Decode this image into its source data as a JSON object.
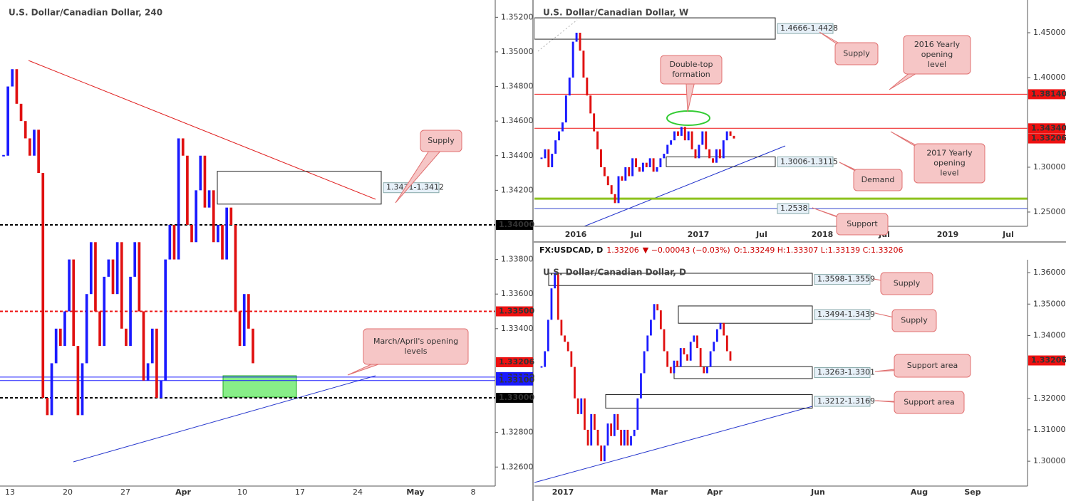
{
  "chart_data": [
    {
      "type": "candlestick",
      "title": "U.S. Dollar/Canadian Dollar, 240",
      "up_color": "#1a1aff",
      "down_color": "#e01010",
      "closes": [
        1.344,
        1.348,
        1.349,
        1.347,
        1.346,
        1.345,
        1.344,
        1.3455,
        1.343,
        1.33,
        1.329,
        1.332,
        1.334,
        1.333,
        1.335,
        1.338,
        1.333,
        1.329,
        1.332,
        1.336,
        1.339,
        1.335,
        1.333,
        1.337,
        1.338,
        1.336,
        1.339,
        1.334,
        1.333,
        1.337,
        1.339,
        1.335,
        1.331,
        1.332,
        1.334,
        1.33,
        1.331,
        1.338,
        1.34,
        1.338,
        1.345,
        1.344,
        1.34,
        1.339,
        1.342,
        1.344,
        1.341,
        1.342,
        1.339,
        1.34,
        1.338,
        1.341,
        1.34,
        1.335,
        1.333,
        1.336,
        1.334,
        1.332
      ],
      "ylim": [
        1.3249,
        1.353
      ],
      "yticks": [
        {
          "value": 1.352,
          "label": "1.35200"
        },
        {
          "value": 1.35,
          "label": "1.35000"
        },
        {
          "value": 1.348,
          "label": "1.34800"
        },
        {
          "value": 1.346,
          "label": "1.34600"
        },
        {
          "value": 1.344,
          "label": "1.34400"
        },
        {
          "value": 1.342,
          "label": "1.34200"
        },
        {
          "value": 1.338,
          "label": "1.33800"
        },
        {
          "value": 1.336,
          "label": "1.33600"
        },
        {
          "value": 1.334,
          "label": "1.33400"
        },
        {
          "value": 1.328,
          "label": "1.32800"
        },
        {
          "value": 1.326,
          "label": "1.32600"
        }
      ],
      "xticks": [
        "13",
        "20",
        "27",
        "Apr",
        "10",
        "17",
        "24",
        "May",
        "8"
      ],
      "levels": [
        {
          "value": 1.34,
          "label": "1.34000",
          "color": "#000000",
          "style": "dash"
        },
        {
          "value": 1.335,
          "label": "1.33500",
          "color": "#ee1111",
          "style": "dash"
        },
        {
          "value": 1.33206,
          "label": "1.33206",
          "color": "#ee1111",
          "style": "none"
        },
        {
          "value": 1.3312,
          "label": "1.33120",
          "color": "#1a1aff",
          "style": "solid"
        },
        {
          "value": 1.331,
          "label": "1.33100",
          "color": "#1a1aff",
          "style": "solid"
        },
        {
          "value": 1.33,
          "label": "1.33000",
          "color": "#000000",
          "style": "dash"
        }
      ],
      "zones": [
        {
          "high": 1.3431,
          "low": 1.3412,
          "label": "1.3431-1.3412"
        }
      ],
      "annotations": [
        {
          "lines": [
            "Supply"
          ]
        },
        {
          "lines": [
            "March/April's opening",
            "levels"
          ]
        }
      ]
    },
    {
      "type": "candlestick",
      "title": "U.S. Dollar/Canadian Dollar, W",
      "up_color": "#1a1aff",
      "down_color": "#e01010",
      "closes": [
        1.31,
        1.32,
        1.3,
        1.315,
        1.33,
        1.34,
        1.35,
        1.38,
        1.4,
        1.44,
        1.45,
        1.43,
        1.4,
        1.38,
        1.36,
        1.34,
        1.32,
        1.3,
        1.29,
        1.28,
        1.27,
        1.26,
        1.29,
        1.285,
        1.3,
        1.29,
        1.31,
        1.3,
        1.295,
        1.305,
        1.3,
        1.31,
        1.295,
        1.3,
        1.31,
        1.315,
        1.325,
        1.33,
        1.34,
        1.335,
        1.345,
        1.33,
        1.34,
        1.32,
        1.31,
        1.325,
        1.34,
        1.32,
        1.31,
        1.305,
        1.32,
        1.31,
        1.33,
        1.34,
        1.335,
        1.332
      ],
      "ylim": [
        1.2341,
        1.4865
      ],
      "yticks": [
        {
          "value": 1.45,
          "label": "1.45000"
        },
        {
          "value": 1.4,
          "label": "1.40000"
        },
        {
          "value": 1.3,
          "label": "1.30000"
        },
        {
          "value": 1.25,
          "label": "1.25000"
        }
      ],
      "xticks": [
        "2016",
        "Jul",
        "2017",
        "Jul",
        "2018",
        "Jul",
        "2019",
        "Jul"
      ],
      "levels": [
        {
          "value": 1.3814,
          "label": "1.38140",
          "color": "#ee1111",
          "style": "solid"
        },
        {
          "value": 1.3434,
          "label": "1.34340",
          "color": "#ee1111",
          "style": "solid"
        },
        {
          "value": 1.33206,
          "label": "1.33206",
          "color": "#ee1111",
          "style": "none"
        },
        {
          "value": 1.265,
          "color": "#8dc21f",
          "style": "thick"
        },
        {
          "value": 1.2538,
          "color": "#3344cc",
          "style": "solid",
          "tag": "1.2538"
        }
      ],
      "zones": [
        {
          "high": 1.4666,
          "low": 1.4428,
          "label": "1.4666-1.4428"
        },
        {
          "high": 1.3115,
          "low": 1.3006,
          "label": "1.3006-1.3115"
        }
      ],
      "annotations": [
        {
          "lines": [
            "Double-top",
            "formation"
          ]
        },
        {
          "lines": [
            "Supply"
          ]
        },
        {
          "lines": [
            "2016 Yearly",
            "opening",
            "level"
          ]
        },
        {
          "lines": [
            "2017 Yearly",
            "opening",
            "level"
          ]
        },
        {
          "lines": [
            "Demand"
          ]
        },
        {
          "lines": [
            "Support"
          ]
        }
      ]
    },
    {
      "type": "candlestick",
      "title": "U.S. Dollar/Canadian Dollar, D",
      "header": {
        "symbol": "FX:USDCAD, D",
        "last": "1.33206",
        "change": "▼ −0.00043 (−0.03%)",
        "ohlc": "O:1.33249 H:1.33307 L:1.33139 C:1.33206"
      },
      "up_color": "#1a1aff",
      "down_color": "#e01010",
      "closes": [
        1.33,
        1.335,
        1.345,
        1.355,
        1.36,
        1.345,
        1.34,
        1.338,
        1.335,
        1.33,
        1.32,
        1.315,
        1.32,
        1.31,
        1.305,
        1.315,
        1.31,
        1.305,
        1.3,
        1.305,
        1.312,
        1.308,
        1.315,
        1.31,
        1.305,
        1.31,
        1.305,
        1.308,
        1.31,
        1.32,
        1.328,
        1.335,
        1.34,
        1.345,
        1.35,
        1.348,
        1.342,
        1.335,
        1.33,
        1.328,
        1.332,
        1.33,
        1.336,
        1.334,
        1.332,
        1.338,
        1.34,
        1.336,
        1.33,
        1.328,
        1.33,
        1.335,
        1.338,
        1.342,
        1.344,
        1.34,
        1.335,
        1.332
      ],
      "ylim": [
        1.2921,
        1.3641
      ],
      "yticks": [
        {
          "value": 1.36,
          "label": "1.36000"
        },
        {
          "value": 1.35,
          "label": "1.35000"
        },
        {
          "value": 1.34,
          "label": "1.34000"
        },
        {
          "value": 1.32,
          "label": "1.32000"
        },
        {
          "value": 1.31,
          "label": "1.31000"
        },
        {
          "value": 1.3,
          "label": "1.30000"
        }
      ],
      "xticks": [
        "2017",
        "Mar",
        "Apr",
        "Jun",
        "Aug",
        "Sep"
      ],
      "levels": [
        {
          "value": 1.33206,
          "label": "1.33206",
          "color": "#ee1111",
          "style": "none"
        }
      ],
      "zones": [
        {
          "high": 1.3598,
          "low": 1.3559,
          "label": "1.3598-1.3559"
        },
        {
          "high": 1.3494,
          "low": 1.3439,
          "label": "1.3494-1.3439"
        },
        {
          "high": 1.3301,
          "low": 1.3263,
          "label": "1.3263-1.3301"
        },
        {
          "high": 1.3212,
          "low": 1.3169,
          "label": "1.3212-1.3169"
        }
      ],
      "annotations": [
        {
          "lines": [
            "Supply"
          ]
        },
        {
          "lines": [
            "Supply"
          ]
        },
        {
          "lines": [
            "Support area"
          ]
        },
        {
          "lines": [
            "Support area"
          ]
        }
      ]
    }
  ]
}
